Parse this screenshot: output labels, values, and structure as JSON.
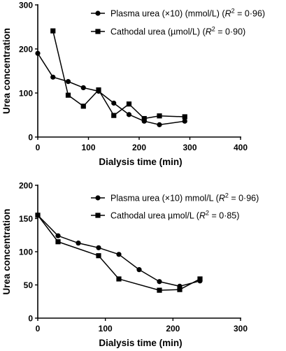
{
  "chart_data": [
    {
      "type": "line",
      "xlabel": "Dialysis time (min)",
      "ylabel": "Urea concentration",
      "xlim": [
        0,
        400
      ],
      "ylim": [
        0,
        300
      ],
      "xticks": [
        "0",
        "100",
        "200",
        "300",
        "400"
      ],
      "yticks": [
        "0",
        "100",
        "200",
        "300"
      ],
      "grid": false,
      "legend_position": "top-right",
      "series": [
        {
          "name": "Plasma urea (×10) (mmol/L)",
          "r2_label": "R",
          "r2_value": "2",
          "r2_rest": " = 0·96)",
          "marker": "circle",
          "x": [
            0,
            30,
            60,
            90,
            120,
            150,
            180,
            210,
            240,
            290
          ],
          "y": [
            190,
            136,
            126,
            112,
            104,
            77,
            51,
            36,
            28,
            36
          ]
        },
        {
          "name": "Cathodal urea (µmol/L)",
          "r2_label": "R",
          "r2_value": "2",
          "r2_rest": " = 0·90)",
          "marker": "square",
          "x": [
            30,
            60,
            90,
            120,
            150,
            180,
            210,
            240,
            290
          ],
          "y": [
            241,
            95,
            70,
            107,
            49,
            75,
            42,
            48,
            46
          ]
        }
      ]
    },
    {
      "type": "line",
      "xlabel": "Dialysis time (min)",
      "ylabel": "Urea concentration",
      "xlim": [
        0,
        300
      ],
      "ylim": [
        0,
        200
      ],
      "xticks": [
        "0",
        "100",
        "200",
        "300"
      ],
      "yticks": [
        "0",
        "50",
        "100",
        "150",
        "200"
      ],
      "grid": false,
      "legend_position": "top-right",
      "series": [
        {
          "name": "Plasma urea (×10) mmol/L",
          "r2_label": "R",
          "r2_value": "2",
          "r2_rest": " = 0·96)",
          "marker": "circle",
          "x": [
            0,
            30,
            60,
            90,
            120,
            150,
            180,
            210,
            240
          ],
          "y": [
            155,
            124,
            113,
            106,
            96,
            73,
            55,
            48,
            56
          ]
        },
        {
          "name": "Cathodal urea  µmol/L",
          "r2_label": "R",
          "r2_value": "2",
          "r2_rest": " = 0·85)",
          "marker": "square",
          "x": [
            0,
            30,
            90,
            120,
            180,
            210,
            240
          ],
          "y": [
            155,
            115,
            94,
            59,
            42,
            43,
            59
          ]
        }
      ]
    }
  ]
}
